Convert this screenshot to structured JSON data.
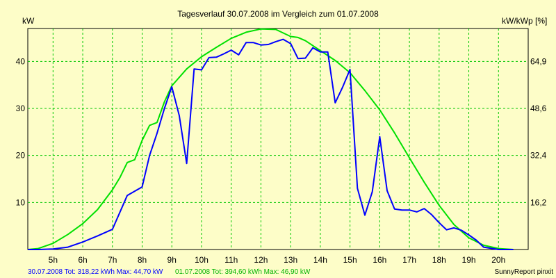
{
  "chart_data": {
    "type": "line",
    "title": "Tagesverlauf 30.07.2008 im Vergleich zum 01.07.2008",
    "ylabel_left": "kW",
    "ylabel_right": "kW/kWp [%]",
    "xlabel": "",
    "xlim": [
      4.15,
      21.0
    ],
    "ylim": [
      0,
      47
    ],
    "y_ticks": [
      10,
      20,
      30,
      40
    ],
    "y_right_ticks": [
      "16,2",
      "32,4",
      "48,6",
      "64,9"
    ],
    "x_ticks": [
      5,
      6,
      7,
      8,
      9,
      10,
      11,
      12,
      13,
      14,
      15,
      16,
      17,
      18,
      19,
      20
    ],
    "x_tick_labels": [
      "5h",
      "6h",
      "7h",
      "8h",
      "9h",
      "10h",
      "11h",
      "12h",
      "13h",
      "14h",
      "15h",
      "16h",
      "17h",
      "18h",
      "19h",
      "20h"
    ],
    "grid": true,
    "series": [
      {
        "name": "30.07.2008",
        "color": "#0000ff",
        "x": [
          4.15,
          4.5,
          5.0,
          5.5,
          6.0,
          6.5,
          7.0,
          7.5,
          8.0,
          8.25,
          8.5,
          8.75,
          9.0,
          9.25,
          9.5,
          9.75,
          10.0,
          10.25,
          10.5,
          10.75,
          11.0,
          11.25,
          11.5,
          11.75,
          12.0,
          12.25,
          12.5,
          12.75,
          13.0,
          13.25,
          13.5,
          13.75,
          14.0,
          14.25,
          14.5,
          14.75,
          15.0,
          15.25,
          15.5,
          15.75,
          16.0,
          16.25,
          16.5,
          16.75,
          17.0,
          17.25,
          17.5,
          17.75,
          18.0,
          18.25,
          18.5,
          18.75,
          19.0,
          19.25,
          19.5,
          20.0,
          20.5
        ],
        "values": [
          0,
          0,
          0.1,
          0.5,
          1.6,
          2.9,
          4.3,
          11.5,
          13.3,
          20.0,
          24.7,
          30.0,
          34.6,
          28.5,
          18.3,
          38.4,
          38.2,
          40.8,
          40.9,
          41.6,
          42.4,
          41.4,
          44.0,
          44.0,
          43.5,
          43.6,
          44.2,
          44.7,
          43.8,
          40.6,
          40.7,
          42.9,
          42.0,
          42.0,
          31.2,
          34.5,
          38.3,
          13.0,
          7.3,
          12.3,
          24.0,
          12.5,
          8.6,
          8.4,
          8.4,
          8.0,
          8.7,
          7.4,
          5.7,
          4.2,
          4.6,
          4.1,
          3.1,
          2.0,
          0.5,
          0,
          0
        ]
      },
      {
        "name": "01.07.2008",
        "color": "#00e000",
        "x": [
          4.15,
          4.5,
          5.0,
          5.5,
          6.0,
          6.5,
          7.0,
          7.25,
          7.5,
          7.75,
          8.0,
          8.25,
          8.5,
          8.75,
          9.0,
          9.5,
          10.0,
          10.5,
          11.0,
          11.5,
          12.0,
          12.5,
          13.0,
          13.25,
          13.5,
          14.0,
          14.5,
          15.0,
          15.5,
          16.0,
          16.5,
          17.0,
          17.5,
          18.0,
          18.5,
          19.0,
          19.5,
          20.0,
          20.5
        ],
        "values": [
          0,
          0.2,
          1.3,
          3.2,
          5.5,
          8.5,
          12.7,
          15.3,
          18.5,
          19.1,
          23.2,
          26.4,
          27.0,
          31.4,
          34.8,
          38.4,
          41.0,
          43.0,
          44.9,
          46.2,
          46.9,
          46.8,
          45.3,
          45.1,
          44.4,
          42.3,
          40.2,
          37.6,
          33.8,
          29.7,
          24.8,
          19.5,
          14.3,
          9.4,
          5.3,
          2.5,
          0.9,
          0.2,
          0
        ]
      }
    ],
    "footer": {
      "series1_label": "30.07.2008 Tot: 318,22 kWh Max: 44,70 kW",
      "series2_label": "01.07.2008 Tot: 394,60 kWh Max: 46,90 kW",
      "credit": "SunnyReport pinxit"
    }
  }
}
